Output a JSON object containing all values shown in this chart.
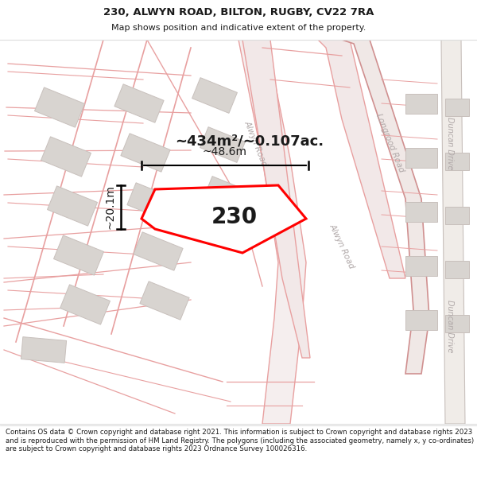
{
  "title_line1": "230, ALWYN ROAD, BILTON, RUGBY, CV22 7RA",
  "title_line2": "Map shows position and indicative extent of the property.",
  "footer_text": "Contains OS data © Crown copyright and database right 2021. This information is subject to Crown copyright and database rights 2023 and is reproduced with the permission of HM Land Registry. The polygons (including the associated geometry, namely x, y co-ordinates) are subject to Crown copyright and database rights 2023 Ordnance Survey 100026316.",
  "area_label": "~434m²/~0.107ac.",
  "number_label": "230",
  "width_label": "~48.6m",
  "height_label": "~20.1m",
  "bg_color": "#ffffff",
  "road_line_color": "#e8a0a0",
  "road_fill_color": "#f0e8e8",
  "building_color": "#d8d4d0",
  "building_outline": "#c8c0bc",
  "prop_color": "#ff0000",
  "prop_fill": "#ffffff",
  "dim_line_color": "#000000",
  "road_label_color": "#b0a8a8",
  "text_color": "#1a1a1a",
  "footer_color": "#1a1a1a"
}
